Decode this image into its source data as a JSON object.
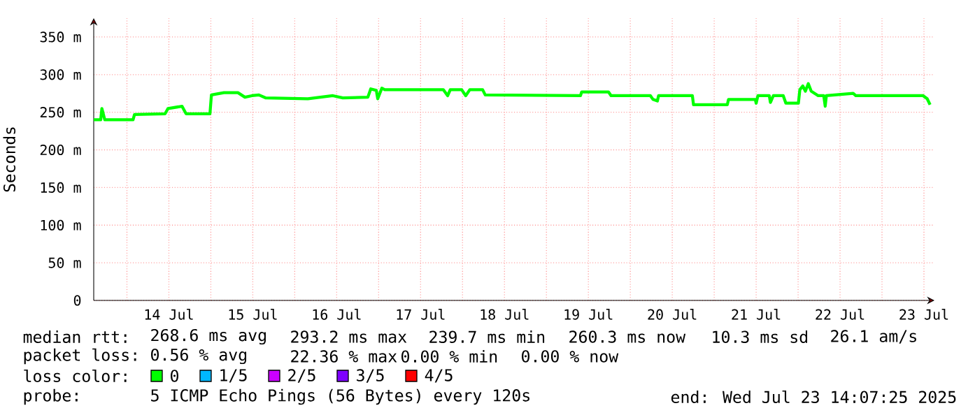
{
  "chart_data": {
    "type": "line",
    "ylabel": "Seconds",
    "legend_title": "loss color:",
    "legend": "bottom",
    "grid": true,
    "xlim": [
      "2025-07-13T14:30",
      "2025-07-23T15:00"
    ],
    "xticks": [
      {
        "value": "2025-07-14T00:00",
        "label": null
      },
      {
        "value": "2025-07-14T12:00",
        "label": "14 Jul"
      },
      {
        "value": "2025-07-15T00:00",
        "label": null
      },
      {
        "value": "2025-07-15T12:00",
        "label": "15 Jul"
      },
      {
        "value": "2025-07-16T00:00",
        "label": null
      },
      {
        "value": "2025-07-16T12:00",
        "label": "16 Jul"
      },
      {
        "value": "2025-07-17T00:00",
        "label": null
      },
      {
        "value": "2025-07-17T12:00",
        "label": "17 Jul"
      },
      {
        "value": "2025-07-18T00:00",
        "label": null
      },
      {
        "value": "2025-07-18T12:00",
        "label": "18 Jul"
      },
      {
        "value": "2025-07-19T00:00",
        "label": null
      },
      {
        "value": "2025-07-19T12:00",
        "label": "19 Jul"
      },
      {
        "value": "2025-07-20T00:00",
        "label": null
      },
      {
        "value": "2025-07-20T12:00",
        "label": "20 Jul"
      },
      {
        "value": "2025-07-21T00:00",
        "label": null
      },
      {
        "value": "2025-07-21T12:00",
        "label": "21 Jul"
      },
      {
        "value": "2025-07-22T00:00",
        "label": null
      },
      {
        "value": "2025-07-22T12:00",
        "label": "22 Jul"
      },
      {
        "value": "2025-07-23T00:00",
        "label": null
      },
      {
        "value": "2025-07-23T12:00",
        "label": "23 Jul"
      }
    ],
    "ylim": [
      0,
      375
    ],
    "yticks": [
      0,
      {
        "value": 50,
        "label": "50 m"
      },
      {
        "value": 100,
        "label": "100 m"
      },
      {
        "value": 150,
        "label": "150 m"
      },
      {
        "value": 200,
        "label": "200 m"
      },
      {
        "value": 250,
        "label": "250 m"
      },
      {
        "value": 300,
        "label": "300 m"
      },
      {
        "value": 350,
        "label": "350 m"
      }
    ],
    "annotations": [
      "median rtt:",
      "268.6 ms avg",
      "293.2 ms max",
      "239.7 ms min",
      "260.3 ms now",
      "10.3 ms sd",
      "26.1   am/s",
      "packet loss:",
      "0.56 % avg",
      "22.36 % max",
      "0.00 % min",
      "0.00 % now",
      "probe:",
      "5 ICMP Echo Pings (56 Bytes) every 120s",
      "end: Wed Jul 23 14:07:25 2025"
    ],
    "series": [
      {
        "name": "0",
        "color": "#00ff00",
        "x": [
          "2025-07-13T14:30",
          "2025-07-13T16:30",
          "2025-07-13T16:50",
          "2025-07-13T17:40",
          "2025-07-14T01:45",
          "2025-07-14T02:10",
          "2025-07-14T10:55",
          "2025-07-14T11:45",
          "2025-07-14T15:45",
          "2025-07-14T16:55",
          "2025-07-14T23:45",
          "2025-07-15T00:10",
          "2025-07-15T03:45",
          "2025-07-15T07:45",
          "2025-07-15T09:45",
          "2025-07-15T11:45",
          "2025-07-15T13:45",
          "2025-07-15T15:45",
          "2025-07-16T03:45",
          "2025-07-16T10:55",
          "2025-07-16T13:45",
          "2025-07-16T20:55",
          "2025-07-16T21:45",
          "2025-07-16T23:20",
          "2025-07-16T23:45",
          "2025-07-17T00:55",
          "2025-07-17T01:45",
          "2025-07-17T18:30",
          "2025-07-17T19:45",
          "2025-07-17T20:30",
          "2025-07-17T23:45",
          "2025-07-18T00:55",
          "2025-07-18T02:05",
          "2025-07-18T05:45",
          "2025-07-18T06:30",
          "2025-07-19T09:45",
          "2025-07-19T10:05",
          "2025-07-19T17:45",
          "2025-07-19T18:30",
          "2025-07-20T05:45",
          "2025-07-20T06:30",
          "2025-07-20T07:45",
          "2025-07-20T08:05",
          "2025-07-20T17:45",
          "2025-07-20T18:05",
          "2025-07-21T03:45",
          "2025-07-21T04:05",
          "2025-07-21T11:45",
          "2025-07-21T12:00",
          "2025-07-21T12:30",
          "2025-07-21T15:45",
          "2025-07-21T16:05",
          "2025-07-21T16:55",
          "2025-07-21T19:45",
          "2025-07-21T20:30",
          "2025-07-22T00:05",
          "2025-07-22T00:30",
          "2025-07-22T01:20",
          "2025-07-22T02:05",
          "2025-07-22T02:55",
          "2025-07-22T03:45",
          "2025-07-22T05:45",
          "2025-07-22T07:20",
          "2025-07-22T07:45",
          "2025-07-22T08:05",
          "2025-07-22T15:45",
          "2025-07-22T16:30",
          "2025-07-23T11:45",
          "2025-07-23T12:55",
          "2025-07-23T13:45"
        ],
        "values": [
          240,
          240,
          255,
          240,
          240,
          247,
          248,
          255,
          258,
          248,
          248,
          273,
          276,
          276,
          270,
          272,
          273,
          269,
          268,
          272,
          269,
          270,
          281,
          279,
          268,
          282,
          280,
          280,
          272,
          280,
          280,
          272,
          280,
          280,
          273,
          272,
          277,
          277,
          272,
          272,
          267,
          265,
          272,
          272,
          260,
          260,
          267,
          267,
          262,
          272,
          272,
          263,
          272,
          272,
          262,
          262,
          280,
          285,
          278,
          288,
          278,
          272,
          272,
          258,
          272,
          275,
          272,
          272,
          268,
          260
        ]
      },
      {
        "name": "1/5",
        "color": "#00b8ff"
      },
      {
        "name": "2/5",
        "color": "#cc00ff"
      },
      {
        "name": "3/5",
        "color": "#7e00ff"
      },
      {
        "name": "4/5",
        "color": "#ff0000"
      }
    ]
  }
}
